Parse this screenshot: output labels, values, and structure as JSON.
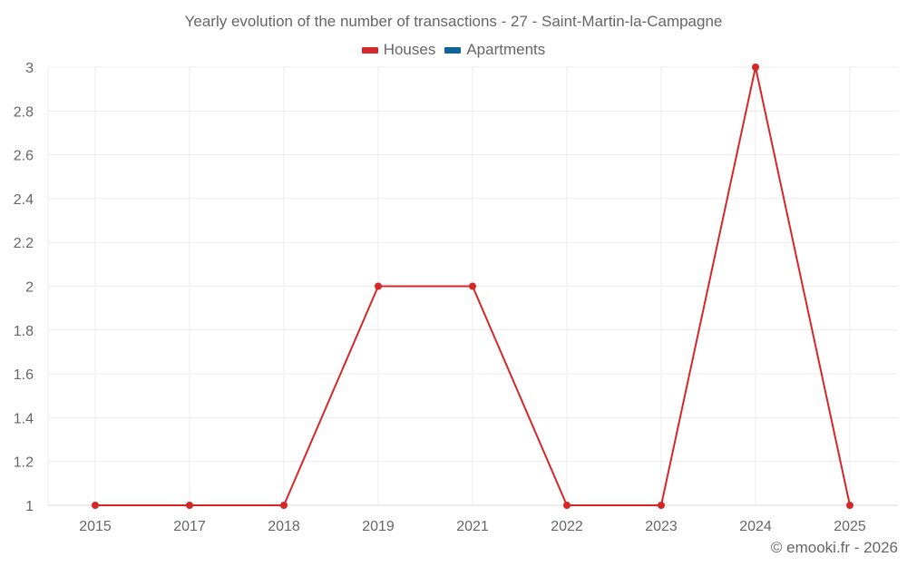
{
  "title": "Yearly evolution of the number of transactions - 27 - Saint-Martin-la-Campagne",
  "legend": [
    {
      "label": "Houses",
      "color": "#d62728"
    },
    {
      "label": "Apartments",
      "color": "#10649c"
    }
  ],
  "credit": "© emooki.fr - 2026",
  "chart_data": {
    "type": "line",
    "title": "Yearly evolution of the number of transactions - 27 - Saint-Martin-la-Campagne",
    "xlabel": "",
    "ylabel": "",
    "categories": [
      "2015",
      "2017",
      "2018",
      "2019",
      "2021",
      "2022",
      "2023",
      "2024",
      "2025"
    ],
    "series": [
      {
        "name": "Houses",
        "color": "#d62728",
        "values": [
          1,
          1,
          1,
          2,
          2,
          1,
          1,
          3,
          1
        ]
      },
      {
        "name": "Apartments",
        "color": "#10649c",
        "values": []
      }
    ],
    "ylim": [
      1,
      3
    ],
    "yticks": [
      "1",
      "1.2",
      "1.4",
      "1.6",
      "1.8",
      "2",
      "2.2",
      "2.4",
      "2.6",
      "2.8",
      "3"
    ],
    "grid": true,
    "legend_position": "top"
  }
}
